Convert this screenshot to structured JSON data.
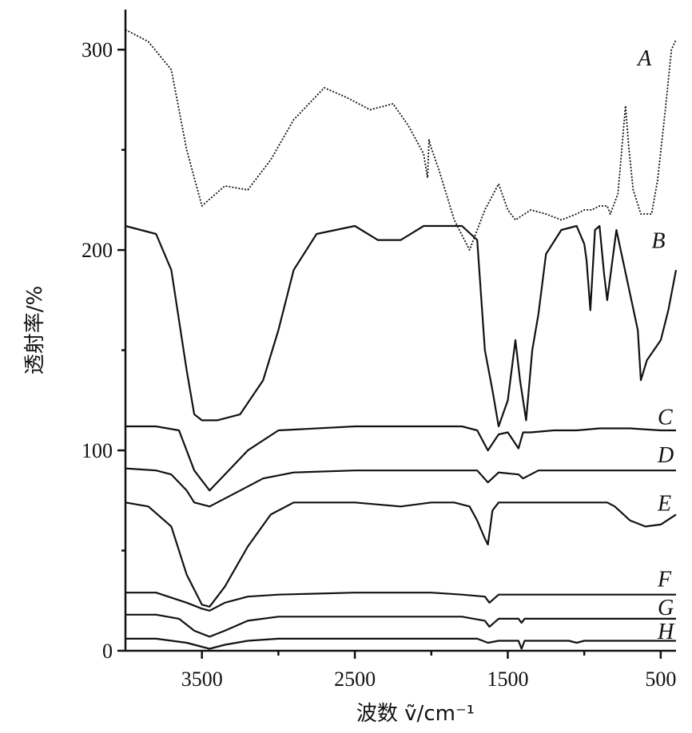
{
  "chart_data": {
    "type": "line",
    "xlabel": "波数 ṽ/cm⁻¹",
    "ylabel": "透射率/%",
    "xlim": [
      4000,
      400
    ],
    "ylim": [
      0,
      320
    ],
    "x_ticks": [
      3500,
      2500,
      1500,
      500
    ],
    "y_ticks": [
      0,
      100,
      200,
      300
    ],
    "series": [
      {
        "name": "A",
        "x": [
          4000,
          3850,
          3700,
          3600,
          3500,
          3350,
          3200,
          3050,
          2900,
          2700,
          2550,
          2400,
          2250,
          2150,
          2050,
          2025,
          2015,
          2005,
          1950,
          1850,
          1750,
          1650,
          1560,
          1500,
          1450,
          1350,
          1250,
          1150,
          1050,
          1000,
          950,
          900,
          850,
          830,
          780,
          730,
          710,
          680,
          630,
          560,
          520,
          470,
          430,
          400
        ],
        "y": [
          310,
          304,
          290,
          250,
          222,
          232,
          230,
          245,
          265,
          281,
          276,
          270,
          273,
          262,
          248,
          236,
          255,
          252,
          240,
          215,
          200,
          220,
          233,
          220,
          215,
          220,
          218,
          215,
          218,
          220,
          220,
          222,
          222,
          218,
          228,
          272,
          252,
          230,
          218,
          218,
          235,
          270,
          300,
          305
        ]
      },
      {
        "name": "B",
        "x": [
          4000,
          3800,
          3700,
          3600,
          3550,
          3500,
          3400,
          3250,
          3100,
          3000,
          2900,
          2750,
          2500,
          2350,
          2200,
          2050,
          1900,
          1800,
          1700,
          1650,
          1600,
          1560,
          1500,
          1450,
          1420,
          1380,
          1340,
          1300,
          1250,
          1150,
          1050,
          1000,
          985,
          960,
          930,
          900,
          870,
          850,
          790,
          720,
          650,
          630,
          590,
          500,
          450,
          400
        ],
        "y": [
          212,
          208,
          190,
          140,
          118,
          115,
          115,
          118,
          135,
          160,
          190,
          208,
          212,
          205,
          205,
          212,
          212,
          212,
          205,
          150,
          130,
          112,
          125,
          155,
          135,
          115,
          150,
          168,
          198,
          210,
          212,
          203,
          195,
          170,
          210,
          212,
          188,
          175,
          210,
          185,
          160,
          135,
          145,
          155,
          170,
          190
        ]
      },
      {
        "name": "C",
        "x": [
          4000,
          3800,
          3650,
          3550,
          3450,
          3350,
          3200,
          3000,
          2500,
          2000,
          1800,
          1700,
          1630,
          1560,
          1500,
          1430,
          1400,
          1350,
          1200,
          1050,
          900,
          700,
          500,
          400
        ],
        "y": [
          112,
          112,
          110,
          90,
          80,
          88,
          100,
          110,
          112,
          112,
          112,
          110,
          100,
          108,
          109,
          101,
          109,
          109,
          110,
          110,
          111,
          111,
          110,
          110
        ]
      },
      {
        "name": "D",
        "x": [
          4000,
          3800,
          3700,
          3600,
          3550,
          3450,
          3300,
          3100,
          2900,
          2500,
          2000,
          1800,
          1700,
          1630,
          1560,
          1430,
          1400,
          1300,
          900,
          500,
          400
        ],
        "y": [
          91,
          90,
          88,
          80,
          74,
          72,
          78,
          86,
          89,
          90,
          90,
          90,
          90,
          84,
          89,
          88,
          86,
          90,
          90,
          90,
          90
        ]
      },
      {
        "name": "E",
        "x": [
          4000,
          3850,
          3700,
          3600,
          3500,
          3450,
          3350,
          3200,
          3050,
          2900,
          2700,
          2500,
          2200,
          2000,
          1850,
          1750,
          1700,
          1650,
          1630,
          1600,
          1560,
          1450,
          1300,
          1100,
          950,
          850,
          800,
          700,
          600,
          500,
          400
        ],
        "y": [
          74,
          72,
          62,
          38,
          23,
          22,
          32,
          52,
          68,
          74,
          74,
          74,
          72,
          74,
          74,
          72,
          65,
          56,
          53,
          70,
          74,
          74,
          74,
          74,
          74,
          74,
          72,
          65,
          62,
          63,
          68
        ]
      },
      {
        "name": "F",
        "x": [
          4000,
          3800,
          3600,
          3500,
          3450,
          3350,
          3200,
          3000,
          2500,
          2000,
          1800,
          1650,
          1620,
          1560,
          1300,
          900,
          500,
          400
        ],
        "y": [
          29,
          29,
          24,
          21,
          20,
          24,
          27,
          28,
          29,
          29,
          28,
          27,
          24,
          28,
          28,
          28,
          28,
          28
        ]
      },
      {
        "name": "G",
        "x": [
          4000,
          3800,
          3650,
          3550,
          3450,
          3350,
          3200,
          3000,
          2500,
          2000,
          1800,
          1650,
          1620,
          1560,
          1430,
          1410,
          1390,
          1300,
          900,
          500,
          400
        ],
        "y": [
          18,
          18,
          16,
          10,
          7,
          10,
          15,
          17,
          17,
          17,
          17,
          15,
          12,
          16,
          16,
          14,
          16,
          16,
          16,
          16,
          16
        ]
      },
      {
        "name": "H",
        "x": [
          4000,
          3800,
          3600,
          3500,
          3450,
          3350,
          3200,
          3000,
          2500,
          2000,
          1700,
          1630,
          1560,
          1430,
          1410,
          1390,
          1100,
          1050,
          1000,
          900,
          500,
          400
        ],
        "y": [
          6,
          6,
          4,
          2,
          1,
          3,
          5,
          6,
          6,
          6,
          6,
          4,
          5,
          5,
          1,
          5,
          5,
          4,
          5,
          5,
          5,
          5
        ]
      }
    ],
    "label_positions": {
      "A": 296,
      "B": 205,
      "C": 117,
      "D": 98,
      "E": 74,
      "F": 36,
      "G": 22,
      "H": 10
    }
  }
}
